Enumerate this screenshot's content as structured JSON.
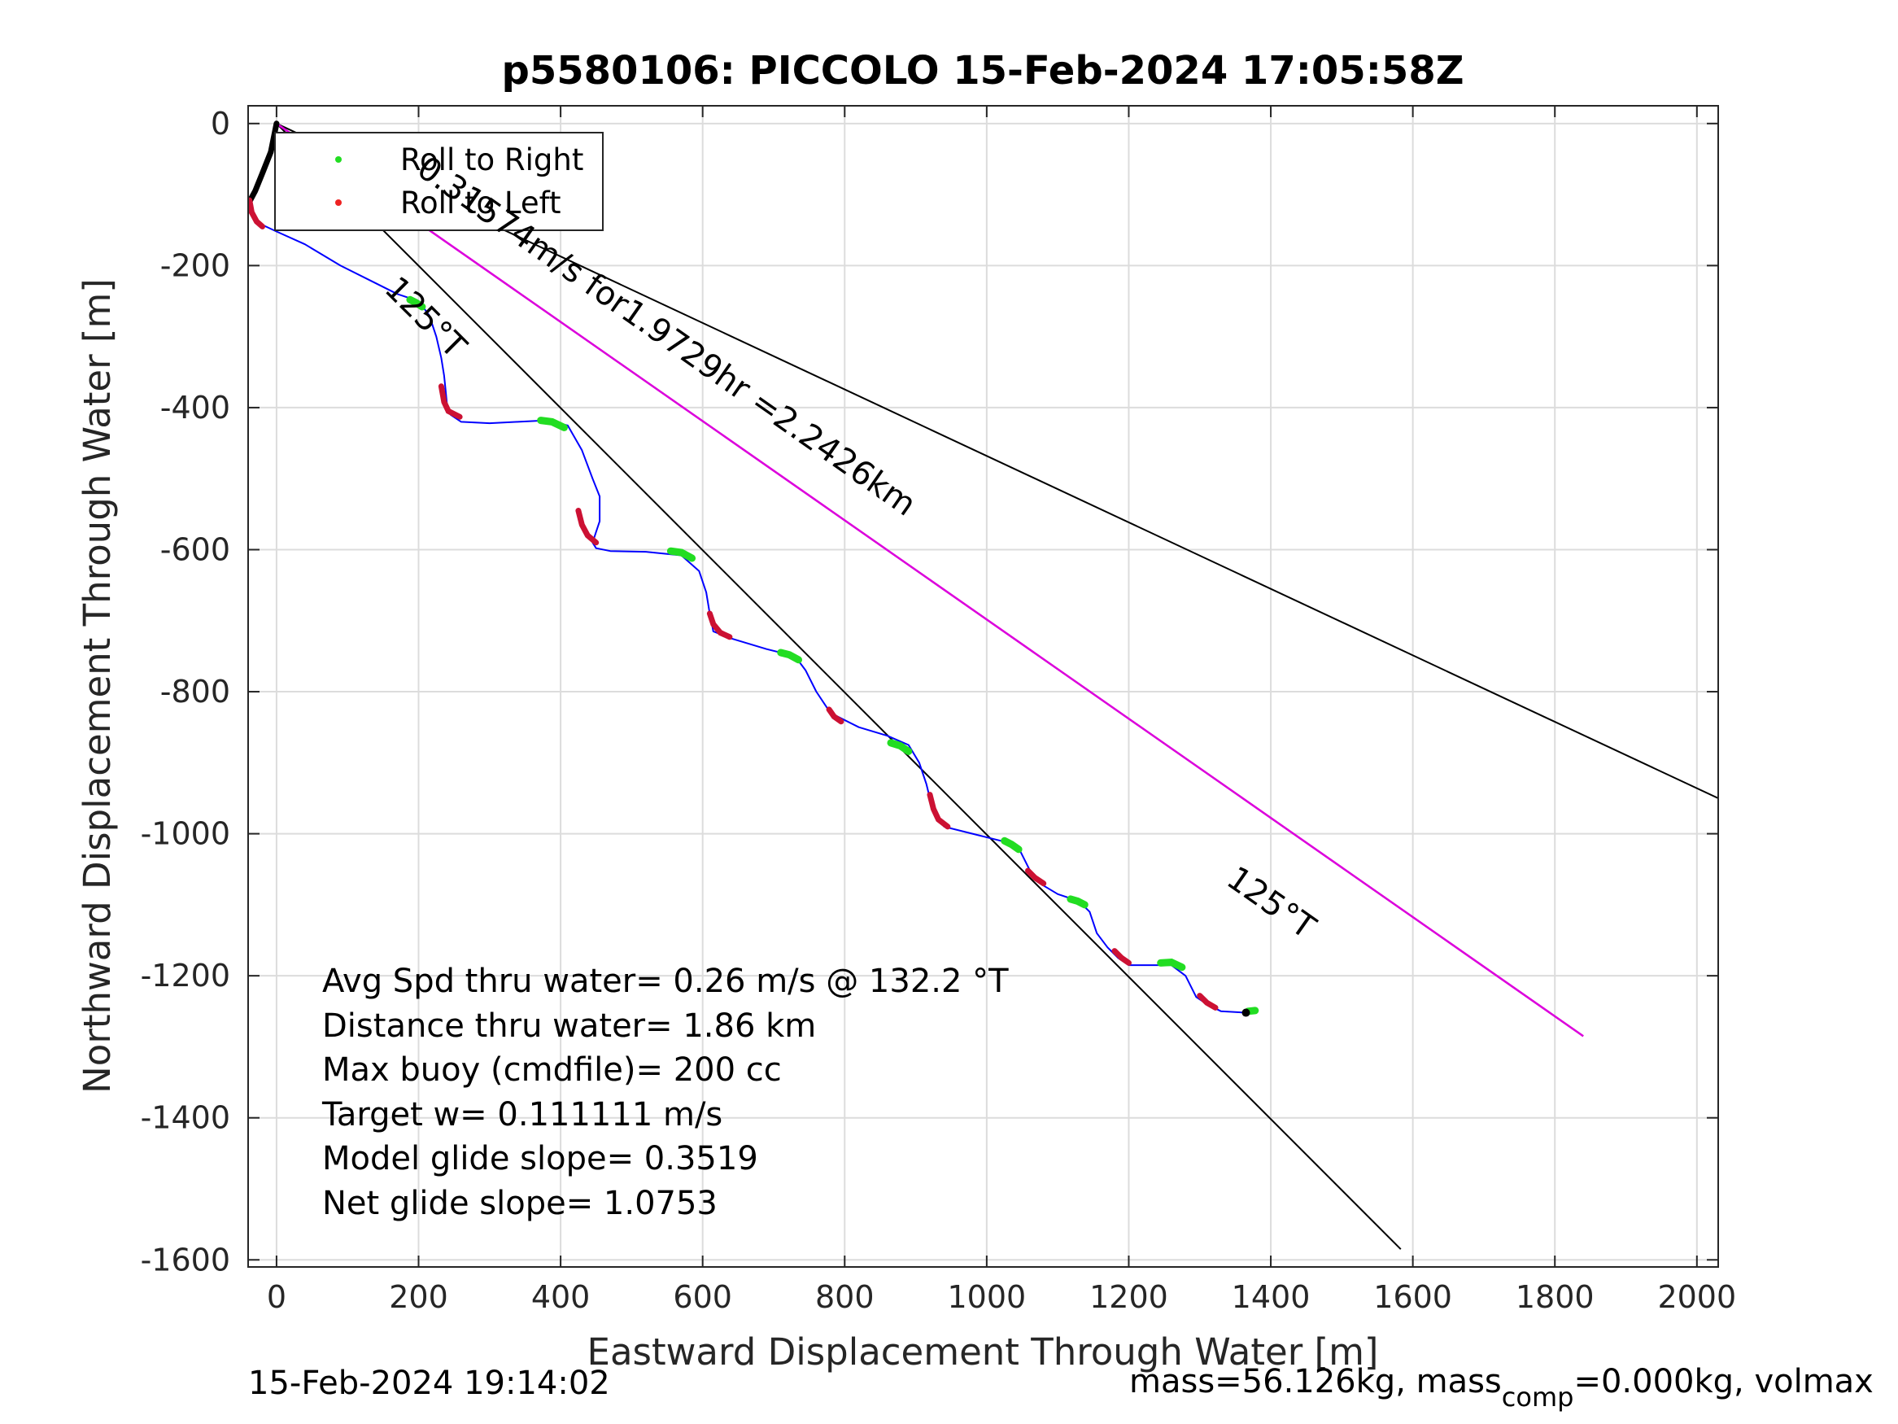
{
  "chart_data": {
    "type": "line",
    "title": "p5580106: PICCOLO 15-Feb-2024 17:05:58Z",
    "xlabel": "Eastward Displacement Through Water [m]",
    "ylabel": "Northward Displacement Through Water [m]",
    "xlim": [
      -40,
      2030
    ],
    "ylim": [
      -1610,
      25
    ],
    "xticks": [
      0,
      200,
      400,
      600,
      800,
      1000,
      1200,
      1400,
      1600,
      1800,
      2000
    ],
    "yticks": [
      0,
      -200,
      -400,
      -600,
      -800,
      -1000,
      -1200,
      -1400,
      -1600
    ],
    "grid": true,
    "legend": {
      "placement": "top-left",
      "entries": [
        "Roll to Right",
        "Roll to Left"
      ]
    },
    "colors": {
      "track": "#0000ff",
      "roll_right": "#22dd22",
      "roll_left": "#cc1133",
      "heading": "#000000",
      "dive_vector": "#dd00dd"
    },
    "heading_lines": [
      {
        "x": [
          0,
          2030
        ],
        "y": [
          0,
          -950
        ]
      },
      {
        "x": [
          0,
          1583
        ],
        "y": [
          0,
          -1585
        ]
      },
      {
        "x": [
          0,
          1840
        ],
        "y": [
          0,
          -1285
        ]
      }
    ],
    "dive_vector": {
      "x": [
        0,
        1840
      ],
      "y": [
        0,
        -1285
      ]
    },
    "surface_track": {
      "x": [
        0,
        -8,
        -20,
        -30,
        -38
      ],
      "y": [
        0,
        -40,
        -70,
        -95,
        -110
      ]
    },
    "track": {
      "x": [
        -38,
        -35,
        -25,
        -15,
        0,
        40,
        90,
        140,
        170,
        200,
        215,
        225,
        232,
        236,
        238,
        240,
        245,
        260,
        300,
        340,
        380,
        410,
        430,
        445,
        455,
        455,
        450,
        445,
        450,
        470,
        520,
        570,
        595,
        605,
        610,
        612,
        615,
        640,
        690,
        730,
        745,
        760,
        780,
        820,
        860,
        890,
        905,
        915,
        920,
        925,
        940,
        980,
        1020,
        1045,
        1060,
        1075,
        1100,
        1130,
        1145,
        1155,
        1170,
        1185,
        1200,
        1230,
        1260,
        1280,
        1295,
        1310,
        1330,
        1365,
        1380
      ],
      "y": [
        -110,
        -130,
        -140,
        -145,
        -152,
        -170,
        -200,
        -225,
        -240,
        -250,
        -270,
        -300,
        -330,
        -355,
        -375,
        -395,
        -410,
        -420,
        -422,
        -420,
        -418,
        -425,
        -460,
        -500,
        -525,
        -560,
        -575,
        -590,
        -598,
        -602,
        -603,
        -608,
        -630,
        -660,
        -690,
        -700,
        -715,
        -725,
        -740,
        -750,
        -770,
        -800,
        -830,
        -850,
        -862,
        -875,
        -900,
        -930,
        -950,
        -970,
        -990,
        -1000,
        -1010,
        -1020,
        -1050,
        -1070,
        -1085,
        -1095,
        -1110,
        -1140,
        -1160,
        -1175,
        -1185,
        -1185,
        -1185,
        -1200,
        -1230,
        -1240,
        -1250,
        -1252,
        -1250
      ]
    },
    "roll_left_segments": [
      {
        "x": [
          -38,
          -35,
          -28,
          -20
        ],
        "y": [
          -108,
          -125,
          -138,
          -145
        ]
      },
      {
        "x": [
          232,
          236,
          242,
          258
        ],
        "y": [
          -370,
          -392,
          -405,
          -413
        ]
      },
      {
        "x": [
          425,
          430,
          438,
          450
        ],
        "y": [
          -545,
          -565,
          -580,
          -590
        ]
      },
      {
        "x": [
          610,
          615,
          625,
          638
        ],
        "y": [
          -690,
          -705,
          -717,
          -723
        ]
      },
      {
        "x": [
          778,
          785,
          795
        ],
        "y": [
          -825,
          -835,
          -842
        ]
      },
      {
        "x": [
          920,
          925,
          932,
          945
        ],
        "y": [
          -945,
          -965,
          -980,
          -990
        ]
      },
      {
        "x": [
          1058,
          1068,
          1080
        ],
        "y": [
          -1052,
          -1062,
          -1070
        ]
      },
      {
        "x": [
          1180,
          1190,
          1200
        ],
        "y": [
          -1165,
          -1175,
          -1182
        ]
      },
      {
        "x": [
          1300,
          1310,
          1322
        ],
        "y": [
          -1228,
          -1238,
          -1245
        ]
      }
    ],
    "roll_right_segments": [
      {
        "x": [
          188,
          196,
          205
        ],
        "y": [
          -248,
          -252,
          -258
        ]
      },
      {
        "x": [
          372,
          388,
          405
        ],
        "y": [
          -418,
          -420,
          -428
        ]
      },
      {
        "x": [
          555,
          570,
          585
        ],
        "y": [
          -602,
          -604,
          -612
        ]
      },
      {
        "x": [
          710,
          722,
          735
        ],
        "y": [
          -745,
          -748,
          -755
        ]
      },
      {
        "x": [
          865,
          878,
          890
        ],
        "y": [
          -872,
          -876,
          -884
        ]
      },
      {
        "x": [
          1025,
          1035,
          1045
        ],
        "y": [
          -1010,
          -1015,
          -1022
        ]
      },
      {
        "x": [
          1118,
          1128,
          1138
        ],
        "y": [
          -1092,
          -1095,
          -1100
        ]
      },
      {
        "x": [
          1245,
          1260,
          1275
        ],
        "y": [
          -1182,
          -1181,
          -1188
        ]
      },
      {
        "x": [
          1368,
          1378
        ],
        "y": [
          -1250,
          -1249
        ]
      }
    ],
    "annotations": [
      {
        "text": "125°T",
        "x": 150,
        "y": -235,
        "angle": 45
      },
      {
        "text": "0.31574m/s for1.9729hr =2.2426km",
        "x": 195,
        "y": -70,
        "angle": 35
      },
      {
        "text": "125°T",
        "x": 1335,
        "y": -1070,
        "angle": 35
      }
    ]
  },
  "legend": {
    "roll_right": "Roll to Right",
    "roll_left": "Roll to Left"
  },
  "stats": [
    "Avg Spd thru water=  0.26 m/s @ 132.2 °T",
    "Distance thru water=  1.86 km",
    "Max buoy (cmdfile)= 200 cc",
    "Target w= 0.111111 m/s",
    "Model glide slope= 0.3519",
    "Net glide slope= 1.0753"
  ],
  "footer": {
    "timestamp": "15-Feb-2024 19:14:02",
    "mass_prefix": "mass=56.126kg, mass",
    "mass_sub": "comp",
    "mass_suffix": "=0.000kg, volmax"
  }
}
